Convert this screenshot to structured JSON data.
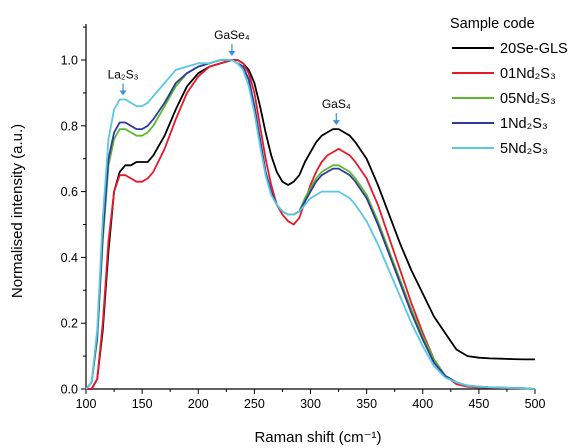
{
  "chart_data": {
    "type": "line",
    "xlabel": "Raman shift (cm⁻¹)",
    "ylabel": "Normalised intensity (a.u.)",
    "xlim": [
      100,
      500
    ],
    "ylim": [
      0,
      1.1
    ],
    "xticks": [
      100,
      150,
      200,
      250,
      300,
      350,
      400,
      450,
      500
    ],
    "yticks": [
      0.0,
      0.2,
      0.4,
      0.6,
      0.8,
      1.0
    ],
    "xtick_labels": [
      "100",
      "150",
      "200",
      "250",
      "300",
      "350",
      "400",
      "450",
      "500"
    ],
    "ytick_labels": [
      "0.0",
      "0.2",
      "0.4",
      "0.6",
      "0.8",
      "1.0"
    ],
    "legend_title": "Sample code",
    "legend_position": "top-right",
    "annotations": [
      {
        "label": "La₂S₃",
        "x": 133,
        "y": 0.88
      },
      {
        "label": "GaSe₄",
        "x": 230,
        "y": 1.0
      },
      {
        "label": "GaS₄",
        "x": 323,
        "y": 0.79
      }
    ],
    "series": [
      {
        "name": "20Se-GLS",
        "color": "#000000",
        "x": [
          100,
          105,
          110,
          115,
          120,
          125,
          130,
          135,
          140,
          145,
          150,
          155,
          160,
          170,
          180,
          190,
          200,
          210,
          220,
          230,
          235,
          240,
          245,
          250,
          255,
          260,
          265,
          270,
          275,
          280,
          285,
          290,
          295,
          300,
          305,
          310,
          315,
          320,
          325,
          330,
          335,
          340,
          350,
          360,
          370,
          380,
          390,
          400,
          410,
          420,
          430,
          440,
          450,
          460,
          470,
          480,
          490,
          500
        ],
        "y": [
          0.0,
          0.0,
          0.03,
          0.18,
          0.42,
          0.6,
          0.66,
          0.68,
          0.68,
          0.69,
          0.69,
          0.69,
          0.71,
          0.77,
          0.85,
          0.92,
          0.96,
          0.98,
          0.99,
          1.0,
          1.0,
          0.99,
          0.97,
          0.93,
          0.86,
          0.78,
          0.71,
          0.66,
          0.63,
          0.62,
          0.63,
          0.65,
          0.69,
          0.72,
          0.75,
          0.77,
          0.78,
          0.79,
          0.79,
          0.78,
          0.77,
          0.75,
          0.7,
          0.62,
          0.53,
          0.44,
          0.36,
          0.29,
          0.22,
          0.17,
          0.12,
          0.1,
          0.095,
          0.093,
          0.092,
          0.091,
          0.09,
          0.09
        ]
      },
      {
        "name": "01Nd₂S₃",
        "color": "#e8182b",
        "x": [
          100,
          105,
          110,
          115,
          120,
          125,
          130,
          135,
          140,
          145,
          150,
          155,
          160,
          170,
          180,
          190,
          200,
          210,
          220,
          230,
          235,
          240,
          245,
          250,
          255,
          260,
          265,
          270,
          275,
          280,
          285,
          290,
          295,
          300,
          305,
          310,
          315,
          320,
          325,
          330,
          335,
          340,
          350,
          360,
          370,
          380,
          390,
          400,
          410,
          420,
          430,
          440,
          450,
          460,
          470,
          480,
          490,
          500
        ],
        "y": [
          0.0,
          0.0,
          0.03,
          0.2,
          0.45,
          0.6,
          0.65,
          0.65,
          0.64,
          0.63,
          0.63,
          0.64,
          0.66,
          0.73,
          0.82,
          0.9,
          0.95,
          0.98,
          0.99,
          1.0,
          1.0,
          0.99,
          0.96,
          0.9,
          0.8,
          0.7,
          0.62,
          0.56,
          0.53,
          0.51,
          0.5,
          0.52,
          0.57,
          0.62,
          0.66,
          0.69,
          0.71,
          0.72,
          0.73,
          0.72,
          0.71,
          0.69,
          0.64,
          0.56,
          0.46,
          0.36,
          0.26,
          0.17,
          0.09,
          0.04,
          0.015,
          0.007,
          0.005,
          0.004,
          0.003,
          0.002,
          0.002,
          0.0
        ]
      },
      {
        "name": "05Nd₂S₃",
        "color": "#5cb82e",
        "x": [
          100,
          105,
          110,
          115,
          120,
          125,
          130,
          135,
          140,
          145,
          150,
          155,
          160,
          170,
          180,
          190,
          200,
          210,
          220,
          230,
          235,
          240,
          245,
          250,
          255,
          260,
          265,
          270,
          275,
          280,
          285,
          290,
          295,
          300,
          305,
          310,
          315,
          320,
          325,
          330,
          335,
          340,
          350,
          360,
          370,
          380,
          390,
          400,
          410,
          420,
          430,
          440,
          450,
          460,
          470,
          480,
          490,
          500
        ],
        "y": [
          0.0,
          0.02,
          0.15,
          0.45,
          0.68,
          0.76,
          0.79,
          0.79,
          0.78,
          0.77,
          0.77,
          0.78,
          0.8,
          0.86,
          0.92,
          0.96,
          0.98,
          0.99,
          1.0,
          1.0,
          0.99,
          0.98,
          0.94,
          0.86,
          0.76,
          0.66,
          0.6,
          0.56,
          0.54,
          0.53,
          0.53,
          0.54,
          0.58,
          0.61,
          0.64,
          0.66,
          0.67,
          0.68,
          0.68,
          0.67,
          0.66,
          0.64,
          0.59,
          0.51,
          0.42,
          0.33,
          0.24,
          0.16,
          0.09,
          0.04,
          0.02,
          0.01,
          0.007,
          0.005,
          0.004,
          0.003,
          0.002,
          0.0
        ]
      },
      {
        "name": "1Nd₂S₃",
        "color": "#2e3a9c",
        "x": [
          100,
          105,
          110,
          115,
          120,
          125,
          130,
          135,
          140,
          145,
          150,
          155,
          160,
          170,
          180,
          190,
          200,
          210,
          220,
          230,
          235,
          240,
          245,
          250,
          255,
          260,
          265,
          270,
          275,
          280,
          285,
          290,
          295,
          300,
          305,
          310,
          315,
          320,
          325,
          330,
          335,
          340,
          350,
          360,
          370,
          380,
          390,
          400,
          410,
          420,
          430,
          440,
          450,
          460,
          470,
          480,
          490,
          500
        ],
        "y": [
          0.0,
          0.02,
          0.16,
          0.47,
          0.7,
          0.78,
          0.81,
          0.81,
          0.8,
          0.79,
          0.79,
          0.8,
          0.82,
          0.87,
          0.93,
          0.96,
          0.98,
          0.99,
          1.0,
          1.0,
          0.99,
          0.98,
          0.94,
          0.86,
          0.76,
          0.66,
          0.6,
          0.56,
          0.54,
          0.53,
          0.53,
          0.54,
          0.57,
          0.6,
          0.63,
          0.65,
          0.66,
          0.67,
          0.67,
          0.66,
          0.65,
          0.63,
          0.58,
          0.5,
          0.41,
          0.32,
          0.23,
          0.15,
          0.08,
          0.04,
          0.02,
          0.01,
          0.007,
          0.005,
          0.004,
          0.003,
          0.002,
          0.0
        ]
      },
      {
        "name": "5Nd₂S₃",
        "color": "#59c8e0",
        "x": [
          100,
          105,
          110,
          115,
          120,
          125,
          130,
          135,
          140,
          145,
          150,
          155,
          160,
          170,
          180,
          190,
          200,
          210,
          220,
          230,
          235,
          240,
          245,
          250,
          255,
          260,
          265,
          270,
          275,
          280,
          285,
          290,
          295,
          300,
          305,
          310,
          315,
          320,
          325,
          330,
          335,
          340,
          350,
          360,
          370,
          380,
          390,
          400,
          410,
          420,
          430,
          440,
          450,
          460,
          470,
          480,
          490,
          500
        ],
        "y": [
          0.0,
          0.02,
          0.18,
          0.52,
          0.76,
          0.85,
          0.88,
          0.88,
          0.87,
          0.86,
          0.86,
          0.87,
          0.89,
          0.93,
          0.97,
          0.98,
          0.99,
          0.99,
          1.0,
          1.0,
          0.99,
          0.97,
          0.92,
          0.84,
          0.74,
          0.65,
          0.59,
          0.56,
          0.54,
          0.53,
          0.53,
          0.54,
          0.56,
          0.58,
          0.59,
          0.6,
          0.6,
          0.6,
          0.6,
          0.59,
          0.58,
          0.56,
          0.51,
          0.44,
          0.36,
          0.28,
          0.2,
          0.13,
          0.07,
          0.035,
          0.02,
          0.01,
          0.007,
          0.005,
          0.004,
          0.003,
          0.002,
          0.0
        ]
      }
    ]
  }
}
